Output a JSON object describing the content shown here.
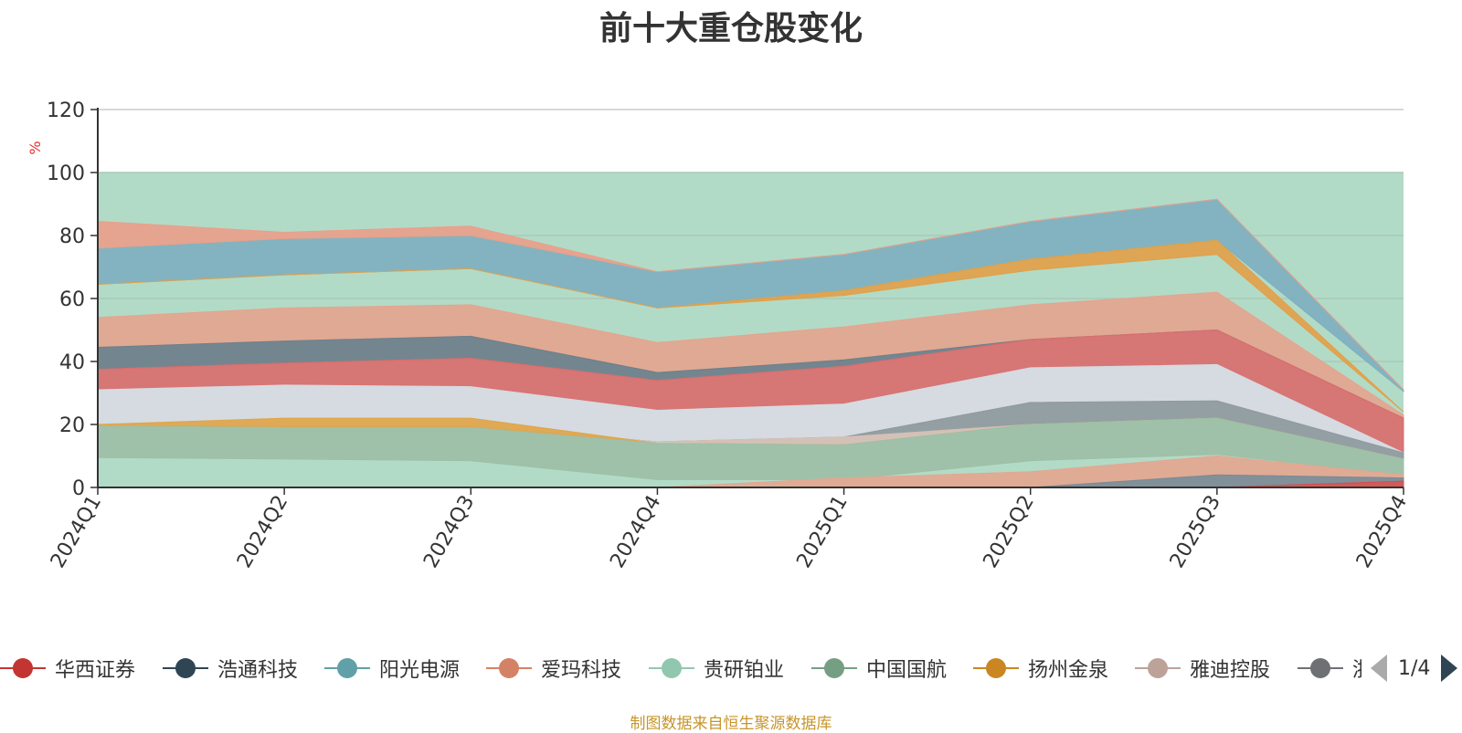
{
  "chart_data": {
    "type": "area",
    "title": "前十大重仓股变化",
    "ylabel": "%",
    "ylim": [
      0,
      120
    ],
    "yticks": [
      0,
      20,
      40,
      60,
      80,
      100,
      120
    ],
    "grid": true,
    "categories": [
      "2024Q1",
      "2024Q2",
      "2024Q3",
      "2024Q4",
      "2025Q1",
      "2025Q2",
      "2025Q3",
      "2025Q4"
    ],
    "background_band": {
      "from": 0,
      "to": 100,
      "color": "#b2dbc7"
    },
    "layers": [
      {
        "name": "阳光电源",
        "color": "#7fb0bf",
        "lower": [
          64.5,
          67.5,
          69.5,
          57,
          62.5,
          72.5,
          78.5,
          30.5
        ],
        "upper": [
          76,
          79,
          80,
          68.5,
          74,
          84.5,
          91.5,
          31
        ]
      },
      {
        "name": "爱玛科技",
        "color": "#e9a08a",
        "lower": [
          76,
          79,
          80,
          68.5,
          74,
          84.5,
          91.5,
          31
        ],
        "upper": [
          84.5,
          81,
          83,
          68.5,
          74,
          84.5,
          91.5,
          31
        ]
      },
      {
        "name": "扬州金泉",
        "color": "#e1a14a",
        "lower": [
          64.5,
          67.5,
          69.5,
          57,
          61,
          69,
          74,
          24
        ],
        "upper": [
          64.5,
          67.5,
          69.5,
          57,
          62.5,
          72.5,
          78.5,
          24
        ]
      },
      {
        "name": "爱玛科技",
        "color": "#e4a58e",
        "lower": [
          44.5,
          46.5,
          48,
          36.5,
          40.5,
          47,
          50,
          22
        ],
        "upper": [
          54,
          57,
          58,
          46,
          51,
          58,
          62,
          23
        ]
      },
      {
        "name": "浩通科技",
        "color": "#6e7f8a",
        "lower": [
          37.5,
          39.5,
          41,
          34,
          38.5,
          47,
          50,
          22
        ],
        "upper": [
          44.5,
          46.5,
          48,
          36.5,
          40.5,
          47,
          50,
          22
        ]
      },
      {
        "name": "华西证券",
        "color": "#d96e6e",
        "lower": [
          31,
          32.5,
          32,
          24.5,
          26.5,
          38,
          39,
          11
        ],
        "upper": [
          37.5,
          39.5,
          41,
          34,
          38.5,
          47,
          50,
          22
        ]
      },
      {
        "name": "雅迪控股",
        "color": "#d8dbe2",
        "lower": [
          19.5,
          19.5,
          19.5,
          14.5,
          16,
          27,
          27.5,
          11
        ],
        "upper": [
          31,
          32.5,
          32,
          24.5,
          26.5,
          38,
          39,
          11
        ]
      },
      {
        "name": "浩通科技",
        "color": "#909aa0",
        "lower": [
          19.5,
          19.5,
          19.5,
          14.5,
          16,
          20,
          22,
          9
        ],
        "upper": [
          19.5,
          19.5,
          19.5,
          14.5,
          16,
          27,
          27.5,
          11
        ]
      },
      {
        "name": "雅迪控股",
        "color": "#d6bfb5",
        "lower": [
          19.5,
          19.5,
          19.5,
          14.5,
          13.5,
          20,
          22,
          9
        ],
        "upper": [
          19.5,
          19.5,
          19.5,
          14.5,
          16,
          20,
          22,
          9
        ]
      },
      {
        "name": "扬州金泉",
        "color": "#dfa54a",
        "lower": [
          19.5,
          19,
          19,
          14,
          13.5,
          20,
          22,
          9
        ],
        "upper": [
          20,
          22,
          22,
          14,
          13.5,
          20,
          22,
          9
        ]
      },
      {
        "name": "中国国航",
        "color": "#9ebfa6",
        "lower": [
          9.5,
          9,
          8.5,
          2.5,
          2.5,
          8.5,
          10.5,
          4
        ],
        "upper": [
          19.5,
          19,
          19,
          14,
          13.5,
          20,
          22,
          9
        ]
      },
      {
        "name": "爱玛科技",
        "color": "#e3a790",
        "lower": [
          0,
          0,
          0,
          0,
          0,
          0,
          4,
          3
        ],
        "upper": [
          0,
          0,
          0,
          0,
          3,
          5,
          10,
          4
        ]
      },
      {
        "name": "浩通科技",
        "color": "#7d8a95",
        "lower": [
          0,
          0,
          0,
          0,
          0,
          0,
          0,
          2
        ],
        "upper": [
          0,
          0,
          0,
          0,
          0,
          0,
          4,
          3
        ]
      },
      {
        "name": "华西证券",
        "color": "#d54f4f",
        "lower": [
          0,
          0,
          0,
          0,
          0,
          0,
          0,
          0
        ],
        "upper": [
          0,
          0,
          0,
          0,
          0,
          0,
          0,
          2
        ]
      }
    ],
    "legend": {
      "position": "bottom",
      "items": [
        {
          "name": "华西证券",
          "color": "#c23531"
        },
        {
          "name": "浩通科技",
          "color": "#2f4554"
        },
        {
          "name": "阳光电源",
          "color": "#61a0a8"
        },
        {
          "name": "爱玛科技",
          "color": "#d48265"
        },
        {
          "name": "贵研铂业",
          "color": "#91c7ae"
        },
        {
          "name": "中国国航",
          "color": "#749f83"
        },
        {
          "name": "扬州金泉",
          "color": "#ca8622"
        },
        {
          "name": "雅迪控股",
          "color": "#bda29a"
        },
        {
          "name": "浙",
          "color": "#6e7074"
        }
      ],
      "page": "1/4"
    },
    "source_note": "制图数据来自恒生聚源数据库"
  }
}
